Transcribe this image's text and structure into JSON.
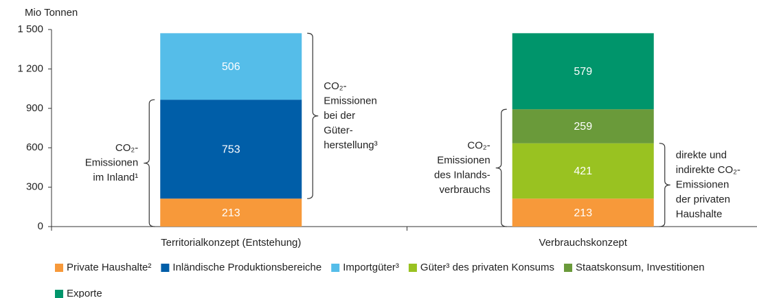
{
  "chart_data": {
    "type": "stacked_bar",
    "y_axis_label": "Mio Tonnen",
    "categories": [
      "Territorialkonzept (Entstehung)",
      "Verbrauchskonzept"
    ],
    "series": [
      {
        "name": "Private Haushalte²",
        "color": "#f7993a",
        "values": [
          213,
          213
        ]
      },
      {
        "name": "Inländische Produktionsbereiche",
        "color": "#005ea8",
        "values": [
          753,
          null
        ]
      },
      {
        "name": "Importgüter³",
        "color": "#55bde9",
        "values": [
          506,
          null
        ]
      },
      {
        "name": "Güter³ des privaten Konsums",
        "color": "#99c221",
        "values": [
          null,
          421
        ]
      },
      {
        "name": "Staatskonsum, Investitionen",
        "color": "#6a9a3a",
        "values": [
          null,
          259
        ]
      },
      {
        "name": "Exporte",
        "color": "#00956b",
        "values": [
          null,
          579
        ]
      }
    ],
    "ylim": [
      0,
      1500
    ],
    "yticks": [
      0,
      300,
      600,
      900,
      {
        "value": 1200,
        "label": "1 200"
      },
      {
        "value": 1500,
        "label": "1 500"
      }
    ],
    "annotations": [
      {
        "lines": [
          "CO₂-",
          "Emissionen",
          "im Inland¹"
        ]
      },
      {
        "lines": [
          "CO₂-",
          "Emissionen",
          "bei der",
          "Güter-",
          "herstellung³"
        ]
      },
      {
        "lines": [
          "CO₂-",
          "Emissionen",
          "des Inlands-",
          "verbrauchs"
        ]
      },
      {
        "lines": [
          "direkte und",
          "indirekte CO₂-",
          "Emissionen",
          "der privaten",
          "Haushalte"
        ]
      }
    ]
  }
}
